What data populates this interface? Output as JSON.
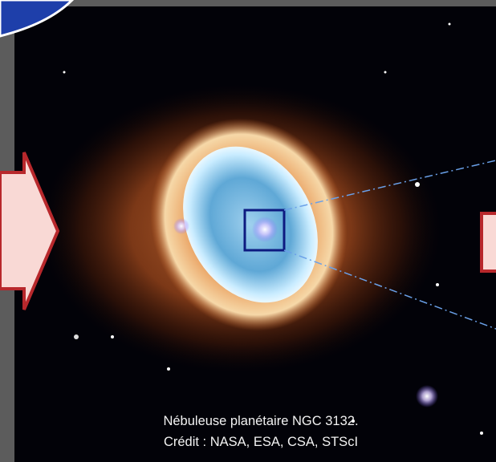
{
  "caption": {
    "line1": "Nébuleuse planétaire NGC 3132.",
    "line2": "Crédit : NASA, ESA, CSA, STScI"
  }
}
